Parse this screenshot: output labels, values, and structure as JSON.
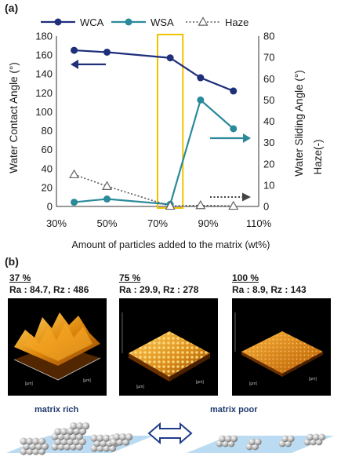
{
  "panel_a_label": "(a)",
  "panel_b_label": "(b)",
  "chart_data": {
    "type": "line",
    "x": [
      37,
      50,
      75,
      87,
      100
    ],
    "xlabel": "Amount of particles added to the matrix (wt%)",
    "xlim": [
      30,
      110
    ],
    "xticks": [
      "30%",
      "50%",
      "70%",
      "90%",
      "110%"
    ],
    "ylabel_left": "Water Contact Angle (°)",
    "ylim_left": [
      0,
      180
    ],
    "yticks_left": [
      "0",
      "20",
      "40",
      "60",
      "80",
      "100",
      "120",
      "140",
      "160",
      "180"
    ],
    "ylabel_right": "Water Sliding Angle (°)",
    "ylabel_right2": "Haze(-)",
    "ylim_right": [
      0,
      80
    ],
    "yticks_right": [
      "0",
      "10",
      "20",
      "30",
      "40",
      "50",
      "60",
      "70",
      "80"
    ],
    "legend_position": "top",
    "highlight_range": [
      70,
      80
    ],
    "series": [
      {
        "name": "WCA",
        "axis": "left",
        "color": "#1f2f7a",
        "style": "solid",
        "marker": "circle",
        "values": [
          165,
          163,
          157,
          136,
          122
        ]
      },
      {
        "name": "WSA",
        "axis": "right",
        "color": "#2a8a9a",
        "style": "solid",
        "marker": "circle",
        "values": [
          2,
          3.5,
          1,
          50,
          36.5
        ]
      },
      {
        "name": "Haze",
        "axis": "right",
        "color": "#555555",
        "style": "dotted",
        "marker": "open-triangle",
        "values": [
          15,
          9.5,
          0.2,
          0.5,
          0.2
        ]
      }
    ]
  },
  "afm": [
    {
      "percent": "37 %",
      "roughness": "Ra : 84.7, Rz : 486"
    },
    {
      "percent": "75 %",
      "roughness": "Ra : 29.9, Rz : 278"
    },
    {
      "percent": "100 %",
      "roughness": "Ra : 8.9, Rz : 143"
    }
  ],
  "matrix_rich_label": "matrix rich",
  "matrix_poor_label": "matrix poor",
  "colors": {
    "wca": "#1f2f7a",
    "wsa": "#2a8a9a",
    "haze": "#555555",
    "highlight": "#f2c200",
    "matrix_label": "#1f3a6e"
  }
}
